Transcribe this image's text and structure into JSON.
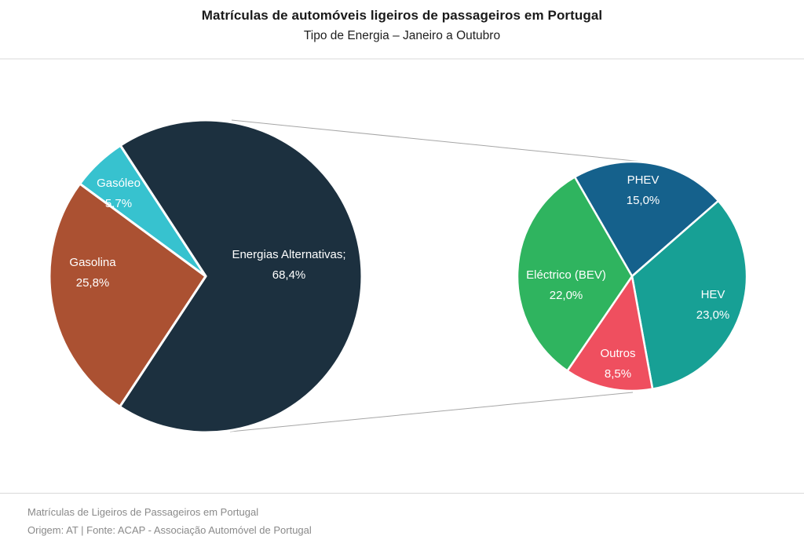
{
  "header": {
    "title": "Matrículas de automóveis ligeiros de passageiros em Portugal",
    "subtitle": "Tipo de Energia – Janeiro a Outubro"
  },
  "footer": {
    "line1": "Matrículas de Ligeiros de Passageiros em Portugal",
    "line2": "Origem: AT | Fonte: ACAP - Associação Automóvel de Portugal"
  },
  "chart_data": {
    "type": "pie",
    "variant": "pie-of-pie",
    "title": "Matrículas de automóveis ligeiros de passageiros em Portugal",
    "subtitle": "Tipo de Energia – Janeiro a Outubro",
    "unit": "%",
    "decimal_separator": ",",
    "legend": "none",
    "main_pie": {
      "center": [
        262,
        352
      ],
      "radius": 199,
      "start_angle_deg": 123.12,
      "border_color": "#ffffff",
      "border_width": 3,
      "slices": [
        {
          "id": "energias-alternativas",
          "name": "Energias Alternativas",
          "value": 68.4,
          "label_line1": "Energias Alternativas;",
          "label_line2": "68,4%",
          "color": "#1c303f"
        },
        {
          "id": "gasolina",
          "name": "Gasolina",
          "value": 25.8,
          "label_line1": "Gasolina",
          "label_line2": "25,8%",
          "color": "#ab5132"
        },
        {
          "id": "gasoleo",
          "name": "Gasóleo",
          "value": 5.7,
          "label_line1": "Gasóleo",
          "label_line2": "5,7%",
          "color": "#37c2cf"
        }
      ]
    },
    "secondary_pie": {
      "center": [
        805,
        352
      ],
      "radius": 146,
      "start_angle_deg": 120,
      "border_color": "#ffffff",
      "border_width": 2.5,
      "slices": [
        {
          "id": "phev",
          "name": "PHEV",
          "value": 15.0,
          "label_line1": "PHEV",
          "label_line2": "15,0%",
          "color": "#15618c"
        },
        {
          "id": "hev",
          "name": "HEV",
          "value": 23.0,
          "label_line1": "HEV",
          "label_line2": "23,0%",
          "color": "#17a095"
        },
        {
          "id": "outros",
          "name": "Outros",
          "value": 8.5,
          "label_line1": "Outros",
          "label_line2": "8,5%",
          "color": "#ef4f5f"
        },
        {
          "id": "electrico-bev",
          "name": "Eléctrico (BEV)",
          "value": 22.0,
          "label_line1": "Eléctrico (BEV)",
          "label_line2": "22,0%",
          "color": "#2fb45f"
        }
      ]
    },
    "connectors": {
      "color": "#a6a6a6",
      "width": 1,
      "top": [
        [
          295,
          153
        ],
        [
          818,
          206
        ]
      ],
      "bottom": [
        [
          293,
          550
        ],
        [
          806,
          500
        ]
      ]
    }
  }
}
